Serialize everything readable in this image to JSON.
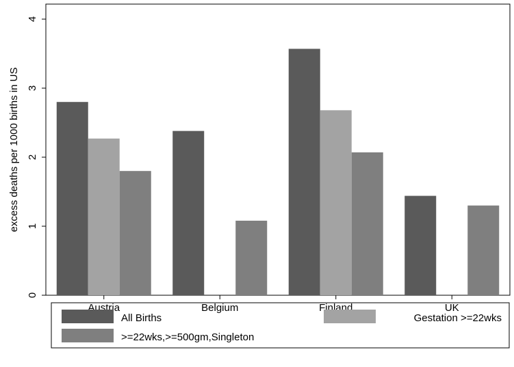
{
  "chart_data": {
    "type": "bar",
    "categories": [
      "Austria",
      "Belgium",
      "Finland",
      "UK"
    ],
    "series": [
      {
        "name": "All Births",
        "color": "#5a5a5a",
        "values": [
          2.8,
          2.38,
          3.57,
          1.44
        ]
      },
      {
        "name": "Gestation >=22wks",
        "color": "#a3a3a3",
        "values": [
          2.27,
          null,
          2.68,
          null
        ]
      },
      {
        "name": ">=22wks,>=500gm,Singleton",
        "color": "#7f7f7f",
        "values": [
          1.8,
          1.08,
          2.07,
          1.3
        ]
      }
    ],
    "ylabel": "excess deaths per 1000 births in US",
    "xlabel": "",
    "ylim": [
      0,
      4
    ],
    "yticks": [
      0,
      1,
      2,
      3,
      4
    ],
    "grid": false,
    "legend": "bottom"
  }
}
